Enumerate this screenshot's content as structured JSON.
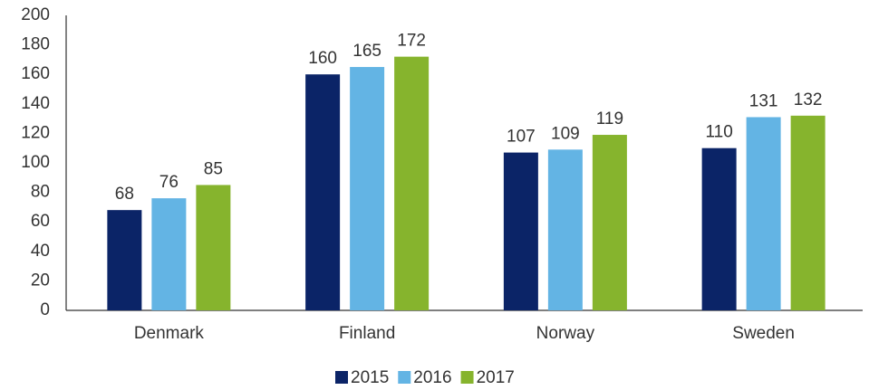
{
  "chart_data": {
    "type": "bar",
    "categories": [
      "Denmark",
      "Finland",
      "Norway",
      "Sweden"
    ],
    "series": [
      {
        "name": "2015",
        "color": "#0b2467",
        "values": [
          68,
          160,
          107,
          110
        ]
      },
      {
        "name": "2016",
        "color": "#63b4e4",
        "values": [
          76,
          165,
          109,
          131
        ]
      },
      {
        "name": "2017",
        "color": "#86b42d",
        "values": [
          85,
          172,
          119,
          132
        ]
      }
    ],
    "ylim": [
      0,
      200
    ],
    "yticks": [
      0,
      20,
      40,
      60,
      80,
      100,
      120,
      140,
      160,
      180,
      200
    ],
    "grid": false,
    "legend": "bottom"
  }
}
